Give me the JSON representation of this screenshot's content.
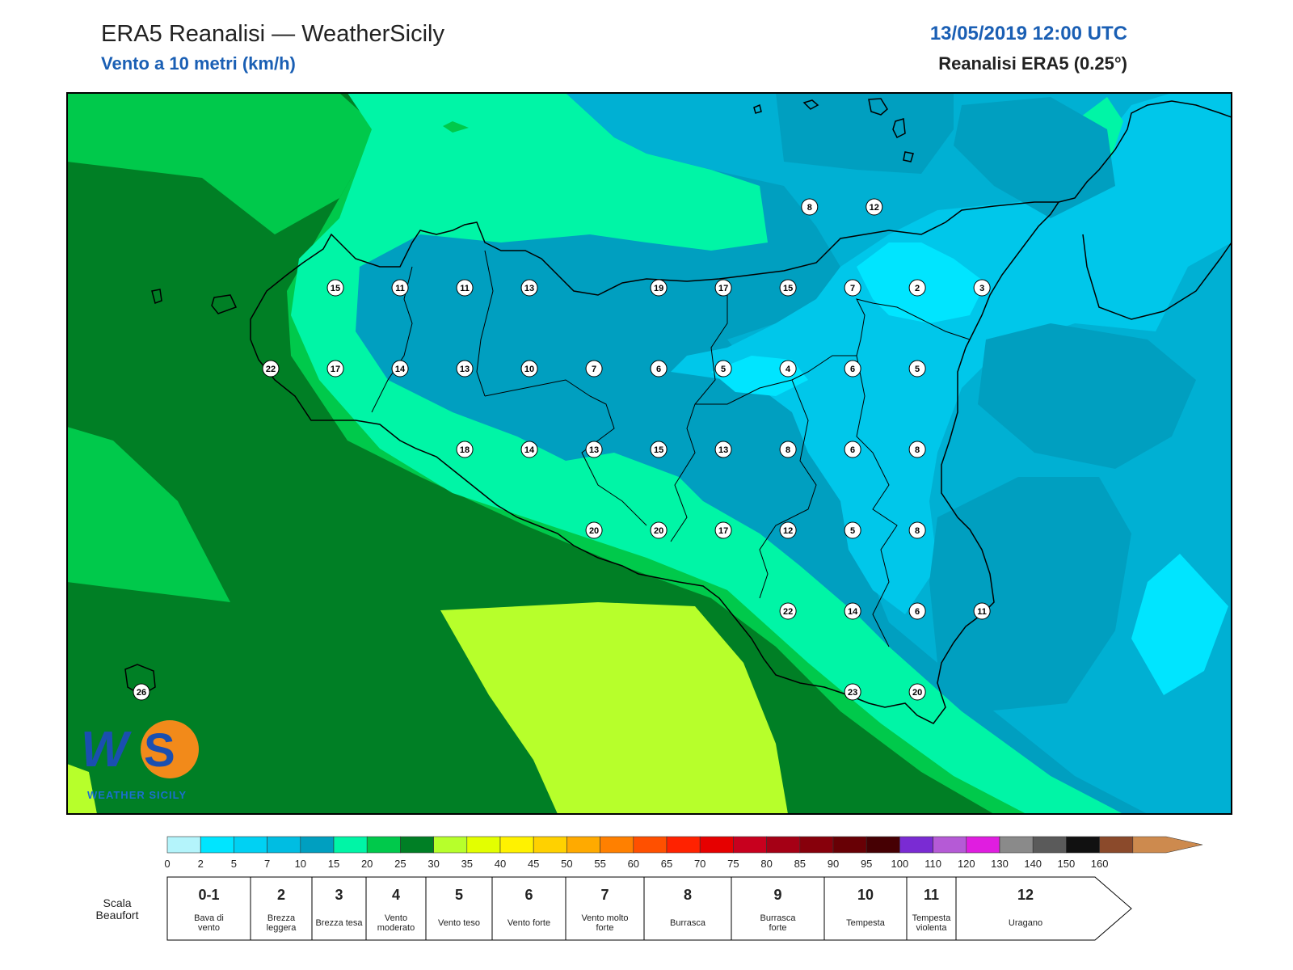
{
  "header": {
    "title": "ERA5 Reanalisi — WeatherSicily",
    "subtitle": "Vento a 10 metri (km/h)",
    "datetime": "13/05/2019 12:00 UTC",
    "source": "Reanalisi ERA5 (0.25°)"
  },
  "logo": {
    "text": "WEATHER SICILY",
    "mark": "WS"
  },
  "colorbar": {
    "ticks": [
      "0",
      "2",
      "5",
      "7",
      "10",
      "15",
      "20",
      "25",
      "30",
      "35",
      "40",
      "45",
      "50",
      "55",
      "60",
      "65",
      "70",
      "75",
      "80",
      "85",
      "90",
      "95",
      "100",
      "110",
      "120",
      "130",
      "140",
      "150",
      "160"
    ],
    "colors": [
      "#b4f4fb",
      "#00e5ff",
      "#00d1f3",
      "#00bde2",
      "#009fc0",
      "#00f5a6",
      "#00c94b",
      "#007f25",
      "#b7ff2b",
      "#e3ff00",
      "#fff200",
      "#ffd100",
      "#ffaa00",
      "#ff8000",
      "#ff5000",
      "#ff2200",
      "#e60000",
      "#c8001e",
      "#a50015",
      "#87000b",
      "#680005",
      "#460003",
      "#7a2bd3",
      "#b55ad6",
      "#e01de0",
      "#8a8a8a",
      "#5a5a5a",
      "#111111",
      "#8b4a2b",
      "#cd8a4e"
    ]
  },
  "beaufort": {
    "title": "Scala Beaufort",
    "scale": [
      {
        "n": "0-1",
        "label": "Bava di vento"
      },
      {
        "n": "2",
        "label": "Brezza leggera"
      },
      {
        "n": "3",
        "label": "Brezza tesa"
      },
      {
        "n": "4",
        "label": "Vento moderato"
      },
      {
        "n": "5",
        "label": "Vento teso"
      },
      {
        "n": "6",
        "label": "Vento forte"
      },
      {
        "n": "7",
        "label": "Vento molto forte"
      },
      {
        "n": "8",
        "label": "Burrasca"
      },
      {
        "n": "9",
        "label": "Burrasca forte"
      },
      {
        "n": "10",
        "label": "Tempesta"
      },
      {
        "n": "11",
        "label": "Tempesta violenta"
      },
      {
        "n": "12",
        "label": "Uragano"
      }
    ]
  },
  "wind_labels": [
    {
      "v": "8",
      "lon": 15.2,
      "lat": 38.5
    },
    {
      "v": "12",
      "lon": 15.5,
      "lat": 38.5
    },
    {
      "v": "15",
      "lon": 13.0,
      "lat": 38.25
    },
    {
      "v": "11",
      "lon": 13.3,
      "lat": 38.25
    },
    {
      "v": "11",
      "lon": 13.6,
      "lat": 38.25
    },
    {
      "v": "13",
      "lon": 13.9,
      "lat": 38.25
    },
    {
      "v": "19",
      "lon": 14.5,
      "lat": 38.25
    },
    {
      "v": "17",
      "lon": 14.8,
      "lat": 38.25
    },
    {
      "v": "15",
      "lon": 15.1,
      "lat": 38.25
    },
    {
      "v": "7",
      "lon": 15.4,
      "lat": 38.25
    },
    {
      "v": "2",
      "lon": 15.7,
      "lat": 38.25
    },
    {
      "v": "3",
      "lon": 16.0,
      "lat": 38.25
    },
    {
      "v": "22",
      "lon": 12.7,
      "lat": 38.0
    },
    {
      "v": "17",
      "lon": 13.0,
      "lat": 38.0
    },
    {
      "v": "14",
      "lon": 13.3,
      "lat": 38.0
    },
    {
      "v": "13",
      "lon": 13.6,
      "lat": 38.0
    },
    {
      "v": "10",
      "lon": 13.9,
      "lat": 38.0
    },
    {
      "v": "7",
      "lon": 14.2,
      "lat": 38.0
    },
    {
      "v": "6",
      "lon": 14.5,
      "lat": 38.0
    },
    {
      "v": "5",
      "lon": 14.8,
      "lat": 38.0
    },
    {
      "v": "4",
      "lon": 15.1,
      "lat": 38.0
    },
    {
      "v": "6",
      "lon": 15.4,
      "lat": 38.0
    },
    {
      "v": "5",
      "lon": 15.7,
      "lat": 38.0
    },
    {
      "v": "18",
      "lon": 13.6,
      "lat": 37.75
    },
    {
      "v": "14",
      "lon": 13.9,
      "lat": 37.75
    },
    {
      "v": "13",
      "lon": 14.2,
      "lat": 37.75
    },
    {
      "v": "15",
      "lon": 14.5,
      "lat": 37.75
    },
    {
      "v": "13",
      "lon": 14.8,
      "lat": 37.75
    },
    {
      "v": "8",
      "lon": 15.1,
      "lat": 37.75
    },
    {
      "v": "6",
      "lon": 15.4,
      "lat": 37.75
    },
    {
      "v": "8",
      "lon": 15.7,
      "lat": 37.75
    },
    {
      "v": "20",
      "lon": 14.2,
      "lat": 37.5
    },
    {
      "v": "20",
      "lon": 14.5,
      "lat": 37.5
    },
    {
      "v": "17",
      "lon": 14.8,
      "lat": 37.5
    },
    {
      "v": "12",
      "lon": 15.1,
      "lat": 37.5
    },
    {
      "v": "5",
      "lon": 15.4,
      "lat": 37.5
    },
    {
      "v": "8",
      "lon": 15.7,
      "lat": 37.5
    },
    {
      "v": "22",
      "lon": 15.1,
      "lat": 37.25
    },
    {
      "v": "14",
      "lon": 15.4,
      "lat": 37.25
    },
    {
      "v": "6",
      "lon": 15.7,
      "lat": 37.25
    },
    {
      "v": "11",
      "lon": 16.0,
      "lat": 37.25
    },
    {
      "v": "26",
      "lon": 12.1,
      "lat": 37.0
    },
    {
      "v": "23",
      "lon": 15.4,
      "lat": 37.0
    },
    {
      "v": "20",
      "lon": 15.7,
      "lat": 37.0
    }
  ]
}
